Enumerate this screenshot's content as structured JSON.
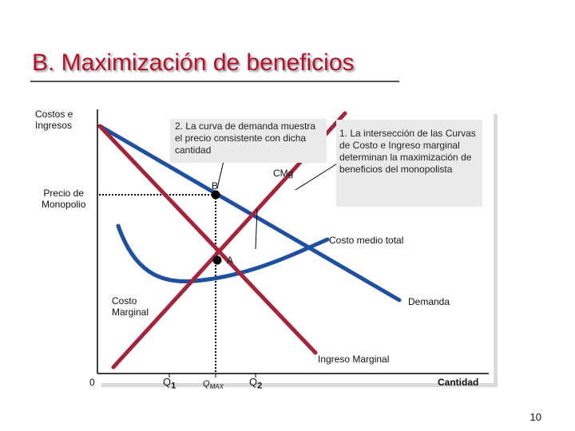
{
  "slide": {
    "title": "B. Maximización de beneficios",
    "page_number": "10"
  },
  "axes": {
    "y_label_line1": "Costos e",
    "y_label_line2": "Ingresos",
    "x_label": "Cantidad",
    "origin": "0",
    "price_label_line1": "Precio de",
    "price_label_line2": "Monopolio"
  },
  "x_ticks": {
    "q1": "Q",
    "q1_sub": "1",
    "qmax": "Q",
    "qmax_sub": "MAX",
    "q2": "Q",
    "q2_sub": "2"
  },
  "curves": {
    "cmg": "CMg",
    "costo_medio": "Costo medio total",
    "costo_marginal_line1": "Costo",
    "costo_marginal_line2": "Marginal",
    "demanda": "Demanda",
    "ingreso_marginal": "Ingreso Marginal"
  },
  "points": {
    "a": "A",
    "b": "B"
  },
  "callouts": {
    "one": "1. La intersección de las Curvas de Costo e Ingreso marginal determinan la maximización de beneficios del monopolista",
    "two": "2. La curva de demanda muestra el precio consistente con dicha cantidad"
  },
  "colors": {
    "title": "#b3122a",
    "demand_curve": "#1f4fa0",
    "marginal_revenue_curve": "#a3243b",
    "cost_curves": "#1f4fa0",
    "callout_bg": "#e9eaec"
  }
}
